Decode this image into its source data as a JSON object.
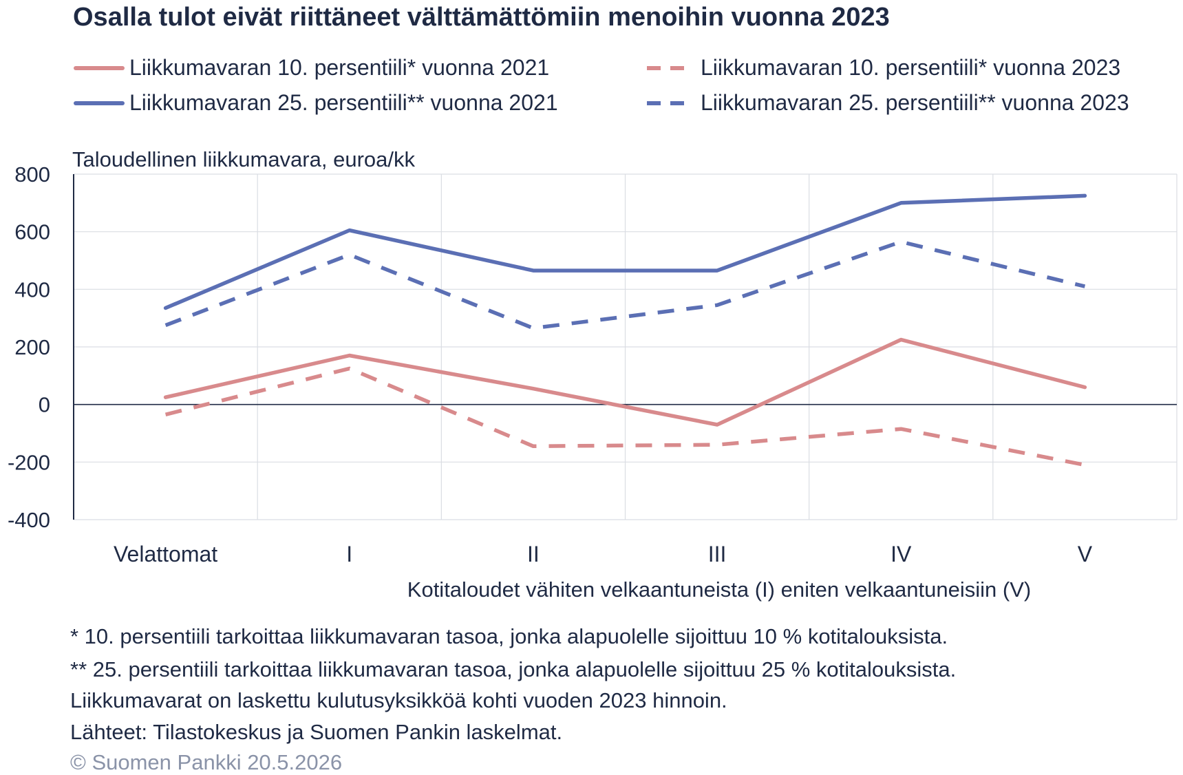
{
  "chart_data": {
    "type": "line",
    "title": "Osalla tulot eivät riittäneet välttämättömiin menoihin vuonna 2023",
    "ylabel": "Taloudellinen liikkumavara, euroa/kk",
    "xlabel": "Kotitaloudet vähiten velkaantuneista (I) eniten velkaantuneisiin (V)",
    "categories": [
      "Velattomat",
      "I",
      "II",
      "III",
      "IV",
      "V"
    ],
    "ylim": [
      -400,
      800
    ],
    "yticks": [
      800,
      600,
      400,
      200,
      0,
      -200,
      -400
    ],
    "grid": true,
    "legend_position": "top",
    "series": [
      {
        "name": "Liikkumavaran 10. persentiili* vuonna 2021",
        "color": "#d88a8c",
        "style": "solid",
        "values": [
          25,
          170,
          55,
          -70,
          225,
          60
        ]
      },
      {
        "name": "Liikkumavaran 10. persentiili* vuonna 2023",
        "color": "#d88a8c",
        "style": "dashed",
        "values": [
          -35,
          125,
          -145,
          -140,
          -85,
          -210
        ]
      },
      {
        "name": "Liikkumavaran 25. persentiili** vuonna 2021",
        "color": "#5b6fb4",
        "style": "solid",
        "values": [
          335,
          605,
          465,
          465,
          700,
          725
        ]
      },
      {
        "name": "Liikkumavaran 25. persentiili** vuonna 2023",
        "color": "#5b6fb4",
        "style": "dashed",
        "values": [
          275,
          520,
          265,
          345,
          565,
          410
        ]
      }
    ]
  },
  "footnotes": [
    "* 10. persentiili tarkoittaa liikkumavaran tasoa, jonka alapuolelle sijoittuu 10 % kotitalouksista.",
    "** 25. persentiili tarkoittaa liikkumavaran tasoa, jonka alapuolelle sijoittuu 25 % kotitalouksista.",
    "Liikkumavarat on laskettu kulutusyksikköä kohti vuoden 2023 hinnoin.",
    "Lähteet: Tilastokeskus ja Suomen Pankin laskelmat."
  ],
  "copyright": "© Suomen Pankki 20.5.2026"
}
